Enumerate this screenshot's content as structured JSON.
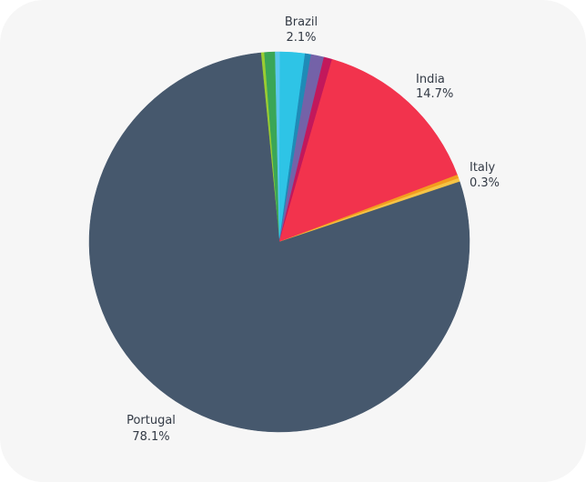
{
  "chart_data": {
    "type": "pie",
    "title": "",
    "slices": [
      {
        "label": "",
        "value": 0.3,
        "color": "#9acd32",
        "show_label": false
      },
      {
        "label": "",
        "value": 0.9,
        "color": "#3aa657",
        "show_label": false
      },
      {
        "label": "",
        "value": 0.4,
        "color": "#5bc8ef",
        "show_label": false
      },
      {
        "label": "Brazil",
        "value": 2.1,
        "color": "#2ec4e6",
        "show_label": true,
        "value_label": "2.1%"
      },
      {
        "label": "",
        "value": 0.5,
        "color": "#1f8bb7",
        "show_label": false
      },
      {
        "label": "",
        "value": 1.1,
        "color": "#7462a8",
        "show_label": false
      },
      {
        "label": "",
        "value": 0.7,
        "color": "#c2185b",
        "show_label": false
      },
      {
        "label": "India",
        "value": 14.7,
        "color": "#f2334d",
        "show_label": true,
        "value_label": "14.7%"
      },
      {
        "label": "",
        "value": 0.3,
        "color": "#f39c1e",
        "show_label": false
      },
      {
        "label": "Italy",
        "value": 0.3,
        "color": "#f6c445",
        "show_label": true,
        "value_label": "0.3%"
      },
      {
        "label": "Portugal",
        "value": 78.1,
        "color": "#46586d",
        "show_label": true,
        "value_label": "78.1%"
      }
    ],
    "start_angle_deg": -5.6,
    "legend": "none"
  }
}
